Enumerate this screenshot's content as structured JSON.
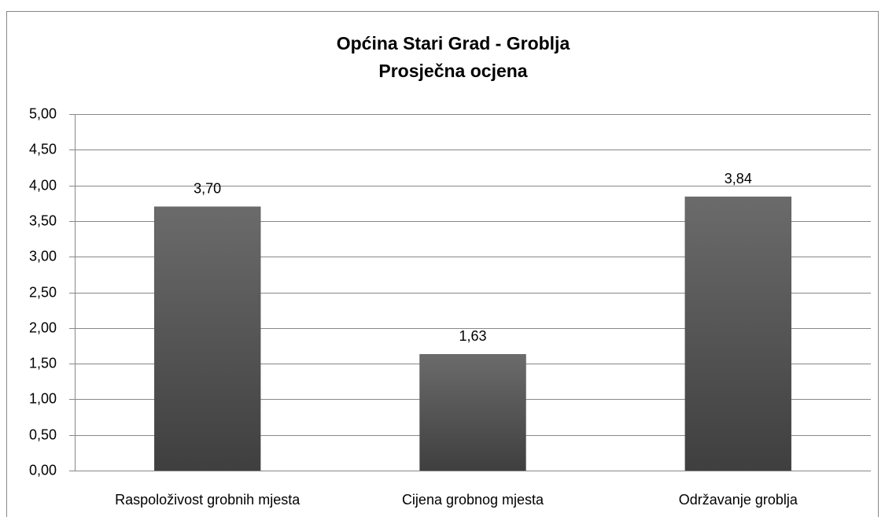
{
  "chart_data": {
    "type": "bar",
    "title": "Općina Stari Grad - Groblja",
    "subtitle": "Prosječna ocjena",
    "categories": [
      "Raspoloživost grobnih mjesta",
      "Cijena grobnog mjesta",
      "Održavanje groblja"
    ],
    "values": [
      3.7,
      1.63,
      3.84
    ],
    "value_labels": [
      "3,70",
      "1,63",
      "3,84"
    ],
    "color": "#555555",
    "ylim": [
      0,
      5
    ],
    "yticks": [
      {
        "value": 0,
        "label": "0,00"
      },
      {
        "value": 0.5,
        "label": "0,50"
      },
      {
        "value": 1,
        "label": "1,00"
      },
      {
        "value": 1.5,
        "label": "1,50"
      },
      {
        "value": 2,
        "label": "2,00"
      },
      {
        "value": 2.5,
        "label": "2,50"
      },
      {
        "value": 3,
        "label": "3,00"
      },
      {
        "value": 3.5,
        "label": "3,50"
      },
      {
        "value": 4,
        "label": "4,00"
      },
      {
        "value": 4.5,
        "label": "4,50"
      },
      {
        "value": 5,
        "label": "5,00"
      }
    ],
    "grid": true
  }
}
